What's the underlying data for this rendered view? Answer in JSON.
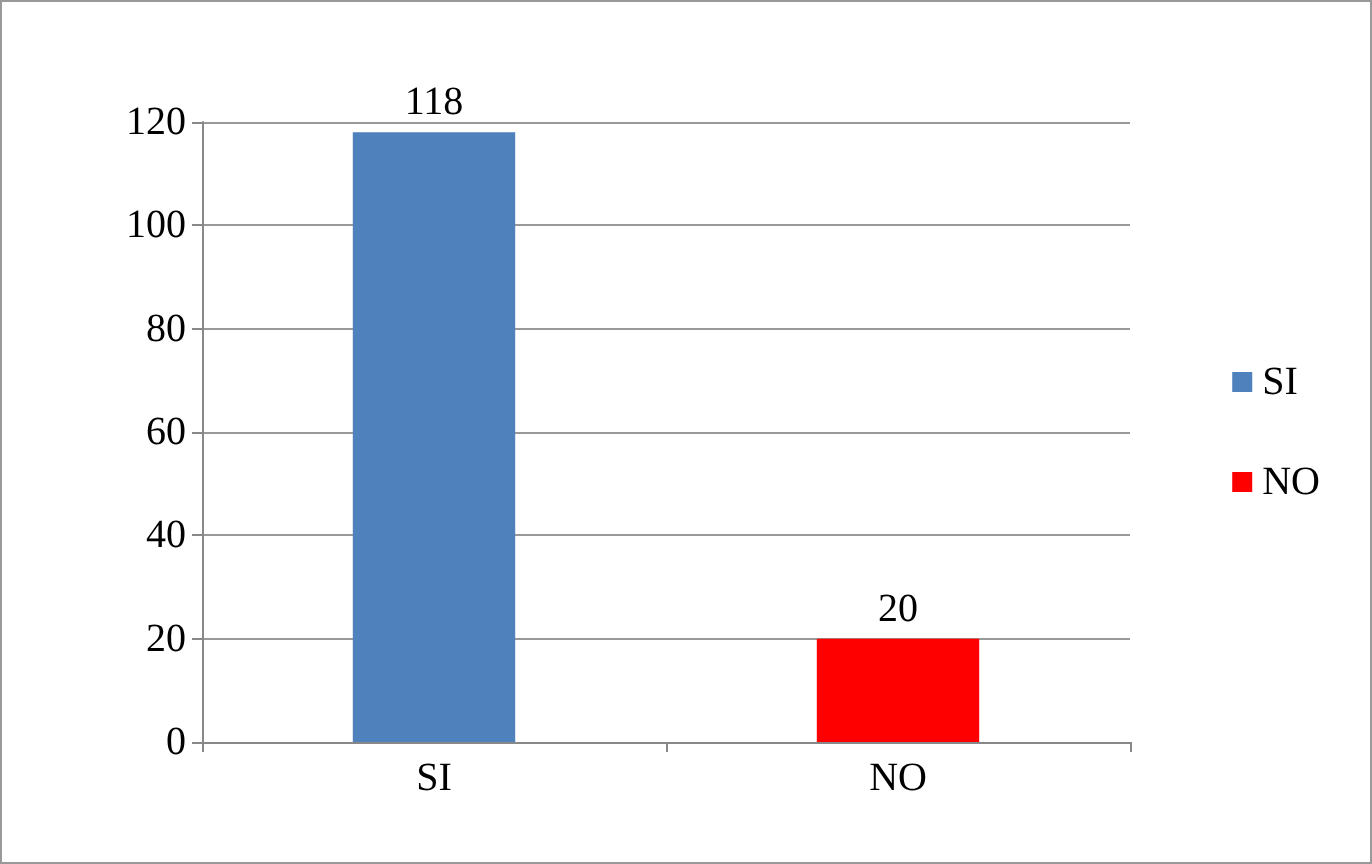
{
  "chart_data": {
    "type": "bar",
    "categories": [
      "SI",
      "NO"
    ],
    "series": [
      {
        "name": "SI",
        "color": "#4f81bd",
        "values": [
          118,
          null
        ]
      },
      {
        "name": "NO",
        "color": "#ff0000",
        "values": [
          null,
          20
        ]
      }
    ],
    "ylim": [
      0,
      120
    ],
    "yticks": [
      0,
      20,
      40,
      60,
      80,
      100,
      120
    ],
    "grid": "y",
    "legend": "right",
    "data_labels": true
  }
}
